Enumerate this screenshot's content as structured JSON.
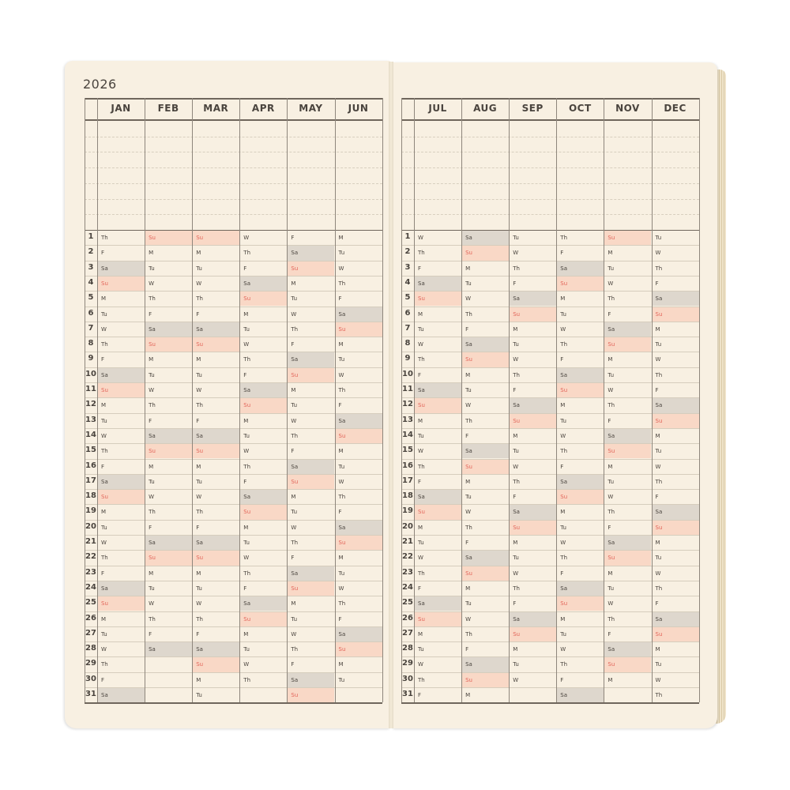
{
  "year": "2026",
  "colors": {
    "page": "#f8f0e2",
    "saturday_fill": "#ded7cd",
    "sunday_fill": "#f9d8c6",
    "sunday_text": "#e3655a",
    "rule": "#6f665c"
  },
  "day_numbers": [
    "1",
    "2",
    "3",
    "4",
    "5",
    "6",
    "7",
    "8",
    "9",
    "10",
    "11",
    "12",
    "13",
    "14",
    "15",
    "16",
    "17",
    "18",
    "19",
    "20",
    "21",
    "22",
    "23",
    "24",
    "25",
    "26",
    "27",
    "28",
    "29",
    "30",
    "31"
  ],
  "months": [
    {
      "name": "JAN",
      "days": [
        "Th",
        "F",
        "Sa",
        "Su",
        "M",
        "Tu",
        "W",
        "Th",
        "F",
        "Sa",
        "Su",
        "M",
        "Tu",
        "W",
        "Th",
        "F",
        "Sa",
        "Su",
        "M",
        "Tu",
        "W",
        "Th",
        "F",
        "Sa",
        "Su",
        "M",
        "Tu",
        "W",
        "Th",
        "F",
        "Sa"
      ]
    },
    {
      "name": "FEB",
      "days": [
        "Su",
        "M",
        "Tu",
        "W",
        "Th",
        "F",
        "Sa",
        "Su",
        "M",
        "Tu",
        "W",
        "Th",
        "F",
        "Sa",
        "Su",
        "M",
        "Tu",
        "W",
        "Th",
        "F",
        "Sa",
        "Su",
        "M",
        "Tu",
        "W",
        "Th",
        "F",
        "Sa"
      ]
    },
    {
      "name": "MAR",
      "days": [
        "Su",
        "M",
        "Tu",
        "W",
        "Th",
        "F",
        "Sa",
        "Su",
        "M",
        "Tu",
        "W",
        "Th",
        "F",
        "Sa",
        "Su",
        "M",
        "Tu",
        "W",
        "Th",
        "F",
        "Sa",
        "Su",
        "M",
        "Tu",
        "W",
        "Th",
        "F",
        "Sa",
        "Su",
        "M",
        "Tu"
      ]
    },
    {
      "name": "APR",
      "days": [
        "W",
        "Th",
        "F",
        "Sa",
        "Su",
        "M",
        "Tu",
        "W",
        "Th",
        "F",
        "Sa",
        "Su",
        "M",
        "Tu",
        "W",
        "Th",
        "F",
        "Sa",
        "Su",
        "M",
        "Tu",
        "W",
        "Th",
        "F",
        "Sa",
        "Su",
        "M",
        "Tu",
        "W",
        "Th"
      ]
    },
    {
      "name": "MAY",
      "days": [
        "F",
        "Sa",
        "Su",
        "M",
        "Tu",
        "W",
        "Th",
        "F",
        "Sa",
        "Su",
        "M",
        "Tu",
        "W",
        "Th",
        "F",
        "Sa",
        "Su",
        "M",
        "Tu",
        "W",
        "Th",
        "F",
        "Sa",
        "Su",
        "M",
        "Tu",
        "W",
        "Th",
        "F",
        "Sa",
        "Su"
      ]
    },
    {
      "name": "JUN",
      "days": [
        "M",
        "Tu",
        "W",
        "Th",
        "F",
        "Sa",
        "Su",
        "M",
        "Tu",
        "W",
        "Th",
        "F",
        "Sa",
        "Su",
        "M",
        "Tu",
        "W",
        "Th",
        "F",
        "Sa",
        "Su",
        "M",
        "Tu",
        "W",
        "Th",
        "F",
        "Sa",
        "Su",
        "M",
        "Tu"
      ]
    },
    {
      "name": "JUL",
      "days": [
        "W",
        "Th",
        "F",
        "Sa",
        "Su",
        "M",
        "Tu",
        "W",
        "Th",
        "F",
        "Sa",
        "Su",
        "M",
        "Tu",
        "W",
        "Th",
        "F",
        "Sa",
        "Su",
        "M",
        "Tu",
        "W",
        "Th",
        "F",
        "Sa",
        "Su",
        "M",
        "Tu",
        "W",
        "Th",
        "F"
      ]
    },
    {
      "name": "AUG",
      "days": [
        "Sa",
        "Su",
        "M",
        "Tu",
        "W",
        "Th",
        "F",
        "Sa",
        "Su",
        "M",
        "Tu",
        "W",
        "Th",
        "F",
        "Sa",
        "Su",
        "M",
        "Tu",
        "W",
        "Th",
        "F",
        "Sa",
        "Su",
        "M",
        "Tu",
        "W",
        "Th",
        "F",
        "Sa",
        "Su",
        "M"
      ]
    },
    {
      "name": "SEP",
      "days": [
        "Tu",
        "W",
        "Th",
        "F",
        "Sa",
        "Su",
        "M",
        "Tu",
        "W",
        "Th",
        "F",
        "Sa",
        "Su",
        "M",
        "Tu",
        "W",
        "Th",
        "F",
        "Sa",
        "Su",
        "M",
        "Tu",
        "W",
        "Th",
        "F",
        "Sa",
        "Su",
        "M",
        "Tu",
        "W"
      ]
    },
    {
      "name": "OCT",
      "days": [
        "Th",
        "F",
        "Sa",
        "Su",
        "M",
        "Tu",
        "W",
        "Th",
        "F",
        "Sa",
        "Su",
        "M",
        "Tu",
        "W",
        "Th",
        "F",
        "Sa",
        "Su",
        "M",
        "Tu",
        "W",
        "Th",
        "F",
        "Sa",
        "Su",
        "M",
        "Tu",
        "W",
        "Th",
        "F",
        "Sa"
      ]
    },
    {
      "name": "NOV",
      "days": [
        "Su",
        "M",
        "Tu",
        "W",
        "Th",
        "F",
        "Sa",
        "Su",
        "M",
        "Tu",
        "W",
        "Th",
        "F",
        "Sa",
        "Su",
        "M",
        "Tu",
        "W",
        "Th",
        "F",
        "Sa",
        "Su",
        "M",
        "Tu",
        "W",
        "Th",
        "F",
        "Sa",
        "Su",
        "M"
      ]
    },
    {
      "name": "DEC",
      "days": [
        "Tu",
        "W",
        "Th",
        "F",
        "Sa",
        "Su",
        "M",
        "Tu",
        "W",
        "Th",
        "F",
        "Sa",
        "Su",
        "M",
        "Tu",
        "W",
        "Th",
        "F",
        "Sa",
        "Su",
        "M",
        "Tu",
        "W",
        "Th",
        "F",
        "Sa",
        "Su",
        "M",
        "Tu",
        "W",
        "Th"
      ]
    }
  ]
}
